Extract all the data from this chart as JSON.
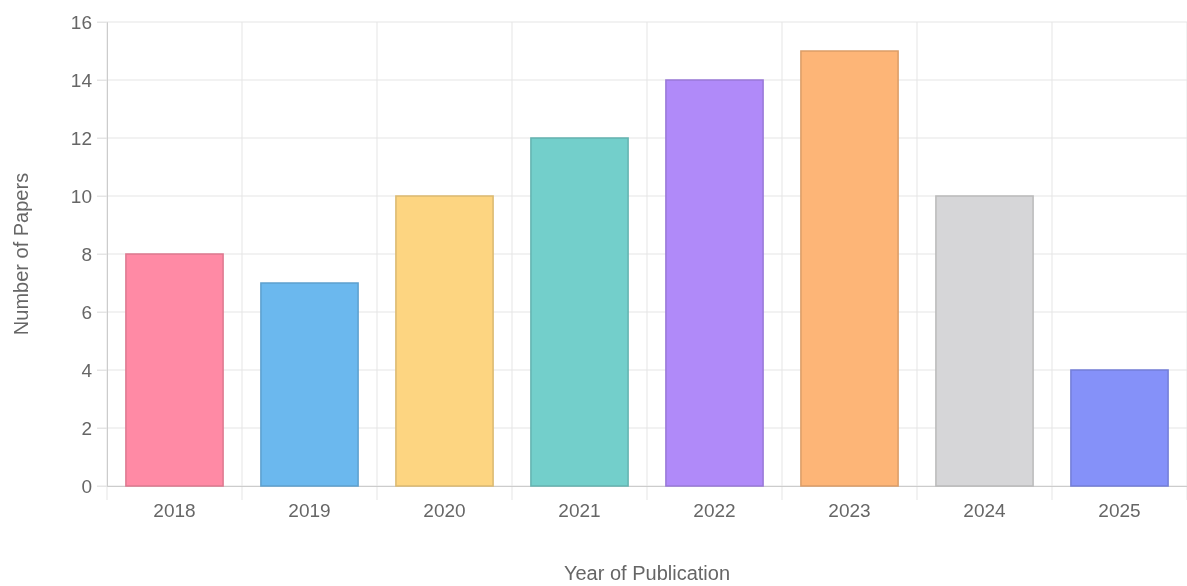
{
  "chart_data": {
    "type": "bar",
    "xlabel": "Year of Publication",
    "ylabel": "Number of Papers",
    "categories": [
      "2018",
      "2019",
      "2020",
      "2021",
      "2022",
      "2023",
      "2024",
      "2025"
    ],
    "values": [
      8,
      7,
      10,
      12,
      14,
      15,
      10,
      4
    ],
    "colors": [
      "#ff8aa5",
      "#6bb8ee",
      "#fdd581",
      "#73cfcb",
      "#b08af9",
      "#fdb577",
      "#d6d6d8",
      "#8591f9"
    ],
    "ylim": [
      0,
      16
    ],
    "yticks": [
      0,
      2,
      4,
      6,
      8,
      10,
      12,
      14,
      16
    ],
    "grid": true
  }
}
